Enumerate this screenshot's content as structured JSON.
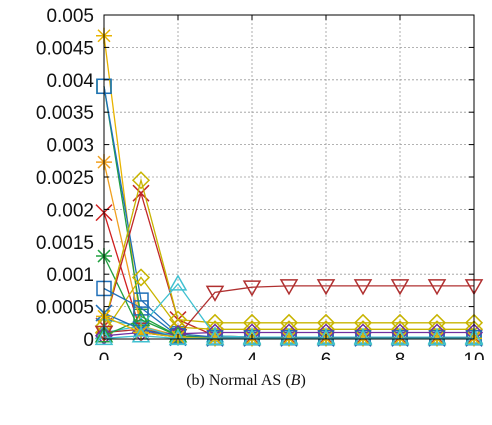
{
  "caption": {
    "prefix": "(b) Normal AS (",
    "var": "B",
    "suffix": ")"
  },
  "chart_data": {
    "type": "line",
    "title": "",
    "xlabel": "",
    "ylabel": "",
    "xlim": [
      0,
      10
    ],
    "ylim": [
      0,
      0.005
    ],
    "grid": true,
    "legend": "none",
    "x_ticks": [
      0,
      2,
      4,
      6,
      8,
      10
    ],
    "y_ticks": [
      0,
      0.0005,
      0.001,
      0.0015,
      0.002,
      0.0025,
      0.003,
      0.0035,
      0.004,
      0.0045,
      0.005
    ],
    "x_tick_labels": [
      "0",
      "2",
      "4",
      "6",
      "8",
      "10"
    ],
    "y_tick_labels": [
      "0",
      "0.0005",
      "0.001",
      "0.0015",
      "0.002",
      "0.0025",
      "0.003",
      "0.0035",
      "0.004",
      "0.0045",
      "0.005"
    ],
    "x": [
      0,
      1,
      2,
      3,
      4,
      5,
      6,
      7,
      8,
      9,
      10
    ],
    "series": [
      {
        "color": "#E8B400",
        "marker": "star",
        "values": [
          0.00468,
          0.00018,
          4e-05,
          2e-05,
          2e-05,
          2e-05,
          2e-05,
          2e-05,
          2e-05,
          2e-05,
          2e-05
        ]
      },
      {
        "color": "#20A040",
        "marker": "square",
        "values": [
          0.0039,
          0.00035,
          5e-05,
          2e-05,
          2e-05,
          2e-05,
          2e-05,
          2e-05,
          2e-05,
          2e-05,
          2e-05
        ]
      },
      {
        "color": "#1F6FB8",
        "marker": "square",
        "values": [
          0.0039,
          0.0006,
          8e-05,
          3e-05,
          2e-05,
          2e-05,
          2e-05,
          2e-05,
          2e-05,
          2e-05,
          2e-05
        ]
      },
      {
        "color": "#F0A020",
        "marker": "star",
        "values": [
          0.00273,
          0.0002,
          5e-05,
          2e-05,
          2e-05,
          2e-05,
          2e-05,
          2e-05,
          2e-05,
          2e-05,
          2e-05
        ]
      },
      {
        "color": "#D02020",
        "marker": "x",
        "values": [
          0.00195,
          0.0001,
          3e-05,
          2e-05,
          2e-05,
          2e-05,
          2e-05,
          2e-05,
          2e-05,
          2e-05,
          2e-05
        ]
      },
      {
        "color": "#20A040",
        "marker": "star",
        "values": [
          0.00128,
          0.0001,
          3e-05,
          2e-05,
          2e-05,
          2e-05,
          2e-05,
          2e-05,
          2e-05,
          2e-05,
          2e-05
        ]
      },
      {
        "color": "#C02828",
        "marker": "x",
        "values": [
          0.0002,
          0.00225,
          0.0003,
          5e-05,
          3e-05,
          3e-05,
          3e-05,
          3e-05,
          3e-05,
          3e-05,
          3e-05
        ]
      },
      {
        "color": "#C8B400",
        "marker": "diamond",
        "values": [
          0.0002,
          0.00245,
          0.0003,
          0.00025,
          0.00025,
          0.00025,
          0.00025,
          0.00025,
          0.00025,
          0.00025,
          0.00025
        ]
      },
      {
        "color": "#C8B400",
        "marker": "diamond",
        "values": [
          0.0001,
          0.00095,
          0.00018,
          0.00015,
          0.00015,
          0.00015,
          0.00015,
          0.00015,
          0.00015,
          0.00015,
          0.00015
        ]
      },
      {
        "color": "#40C0D0",
        "marker": "triangle",
        "values": [
          0.0001,
          0.0002,
          0.00085,
          5e-05,
          3e-05,
          3e-05,
          3e-05,
          3e-05,
          3e-05,
          3e-05,
          3e-05
        ]
      },
      {
        "color": "#B03030",
        "marker": "tri-down",
        "values": [
          0.0001,
          0.00015,
          5e-05,
          0.00072,
          0.0008,
          0.00082,
          0.00082,
          0.00082,
          0.00082,
          0.00082,
          0.00082
        ]
      },
      {
        "color": "#1F6FB8",
        "marker": "square",
        "values": [
          0.00078,
          0.00048,
          5e-05,
          2e-05,
          2e-05,
          2e-05,
          2e-05,
          2e-05,
          2e-05,
          2e-05,
          2e-05
        ]
      },
      {
        "color": "#7030A0",
        "marker": "diamond",
        "values": [
          5e-05,
          0.0001,
          8e-05,
          0.0001,
          0.0001,
          0.0001,
          0.0001,
          0.0001,
          0.0001,
          0.0001,
          0.0001
        ]
      },
      {
        "color": "#40C0D0",
        "marker": "plus",
        "values": [
          0.0003,
          0.0002,
          2e-05,
          1e-05,
          1e-05,
          1e-05,
          1e-05,
          1e-05,
          1e-05,
          1e-05,
          1e-05
        ]
      },
      {
        "color": "#20A040",
        "marker": "triangle",
        "values": [
          5e-05,
          0.0003,
          5e-05,
          1e-05,
          1e-05,
          1e-05,
          1e-05,
          1e-05,
          1e-05,
          1e-05,
          1e-05
        ]
      },
      {
        "color": "#1F6FB8",
        "marker": "x",
        "values": [
          0.0004,
          0.00015,
          2e-05,
          1e-05,
          1e-05,
          1e-05,
          1e-05,
          1e-05,
          1e-05,
          1e-05,
          1e-05
        ]
      },
      {
        "color": "#E8B400",
        "marker": "star",
        "values": [
          0.00035,
          0.0001,
          3e-05,
          1e-05,
          1e-05,
          1e-05,
          1e-05,
          1e-05,
          1e-05,
          1e-05,
          1e-05
        ]
      },
      {
        "color": "#40C0D0",
        "marker": "triangle",
        "values": [
          1e-05,
          5e-05,
          1e-05,
          1e-05,
          1e-05,
          1e-05,
          1e-05,
          1e-05,
          1e-05,
          1e-05,
          1e-05
        ]
      }
    ]
  }
}
